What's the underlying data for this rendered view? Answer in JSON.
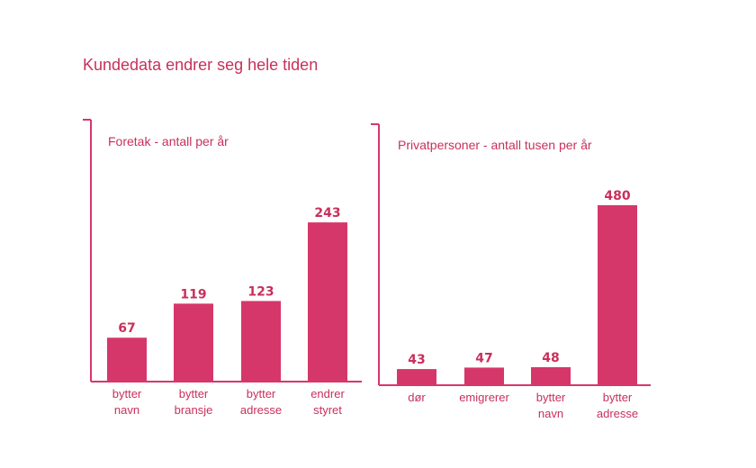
{
  "page": {
    "title": "Kundedata endrer seg hele tiden",
    "accent_color": "#d6376b",
    "text_color": "#c8305c"
  },
  "chart_data": [
    {
      "type": "bar",
      "title": "Foretak - antall per år",
      "categories": [
        [
          "bytter",
          "navn"
        ],
        [
          "bytter",
          "bransje"
        ],
        [
          "bytter",
          "adresse"
        ],
        [
          "endrer",
          "styret"
        ]
      ],
      "values": [
        67,
        119,
        123,
        243
      ],
      "data_labels": [
        "67",
        "119",
        "123",
        "243"
      ],
      "ylim": [
        0,
        300
      ],
      "grid": false,
      "legend": "none"
    },
    {
      "type": "bar",
      "title": "Privatpersoner - antall tusen per år",
      "categories": [
        [
          "dør"
        ],
        [
          "emigrerer"
        ],
        [
          "bytter",
          "navn"
        ],
        [
          "bytter",
          "adresse"
        ]
      ],
      "values": [
        43,
        47,
        48,
        480
      ],
      "data_labels": [
        "43",
        "47",
        "48",
        "480"
      ],
      "ylim": [
        0,
        600
      ],
      "grid": false,
      "legend": "none"
    }
  ]
}
